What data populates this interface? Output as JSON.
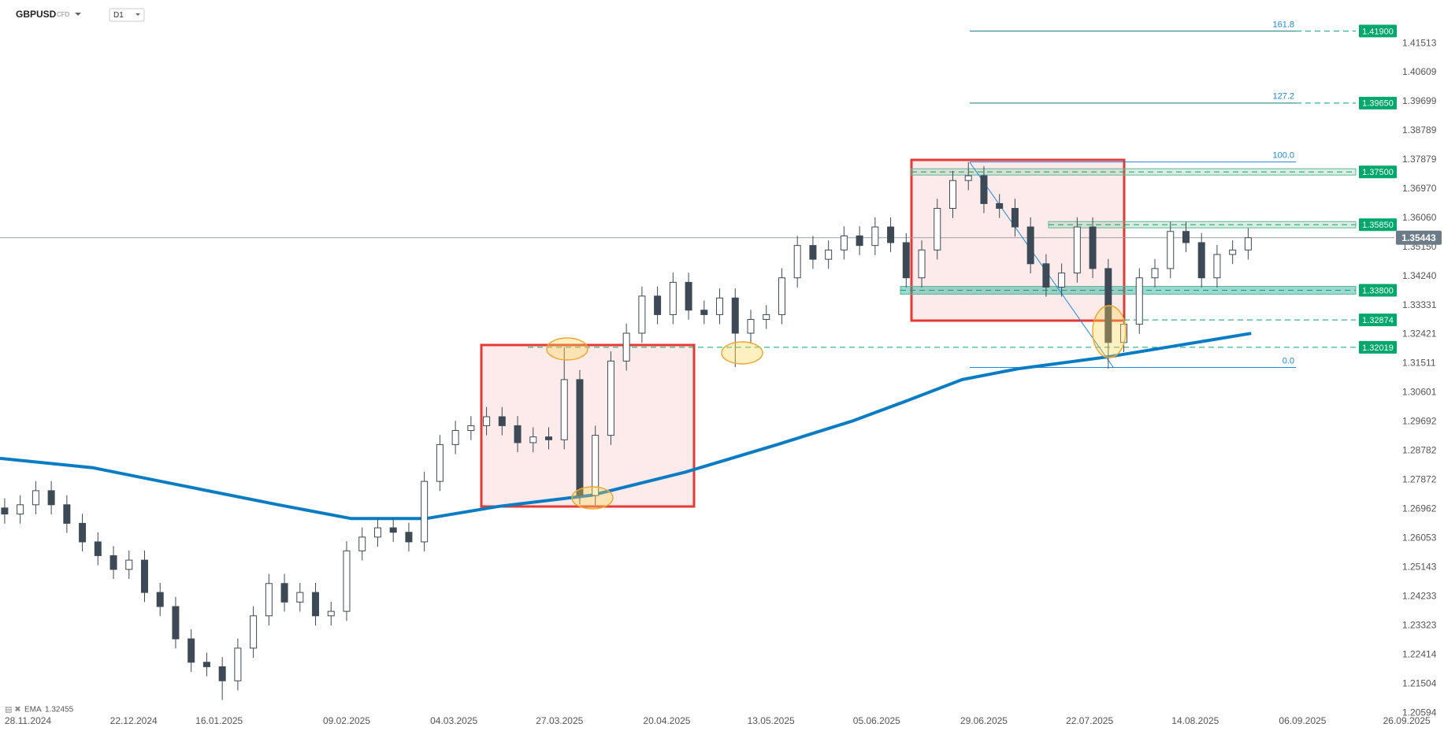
{
  "chart_data": {
    "type": "candlestick",
    "title": "GBPUSD",
    "subtitle": "CFD",
    "timeframe": "D1",
    "xlim": [
      -0.3,
      92.6
    ],
    "ylim": [
      1.2045,
      1.4287
    ],
    "xticks": [
      {
        "value": 1.5,
        "label": "28.11.2024"
      },
      {
        "value": 8.3,
        "label": "22.12.2024"
      },
      {
        "value": 13.8,
        "label": "16.01.2025"
      },
      {
        "value": 22,
        "label": "09.02.2025"
      },
      {
        "value": 28.9,
        "label": "04.03.2025"
      },
      {
        "value": 35.7,
        "label": "27.03.2025"
      },
      {
        "value": 42.6,
        "label": "20.04.2025"
      },
      {
        "value": 49.3,
        "label": "13.05.2025"
      },
      {
        "value": 56.1,
        "label": "05.06.2025"
      },
      {
        "value": 63,
        "label": "29.06.2025"
      },
      {
        "value": 69.8,
        "label": "22.07.2025"
      },
      {
        "value": 76.6,
        "label": "14.08.2025"
      },
      {
        "value": 83.5,
        "label": "06.09.2025"
      },
      {
        "value": 90.2,
        "label": "26.09.2025"
      }
    ],
    "yticks": [
      1.41513,
      1.40609,
      1.39699,
      1.38789,
      1.37879,
      {
        "value": 1.3697,
        "label": "1.36970"
      },
      {
        "value": 1.3606,
        "label": "1.36060"
      },
      {
        "value": 1.3515,
        "label": "1.35150"
      },
      {
        "value": 1.3424,
        "label": "1.34240"
      },
      1.33331,
      1.32421,
      1.31511,
      1.30601,
      1.29692,
      1.28782,
      1.27872,
      1.26962,
      1.26053,
      1.25143,
      1.24233,
      1.23323,
      1.22414,
      1.21504,
      1.20594
    ],
    "up_color": "#ffffff",
    "down_color": "#3d4a56",
    "candles": [
      [
        1.27,
        1.273,
        1.2651,
        1.2681
      ],
      [
        1.2681,
        1.274,
        1.2651,
        1.271
      ],
      [
        1.271,
        1.2784,
        1.268,
        1.2754
      ],
      [
        1.2754,
        1.2784,
        1.268,
        1.271
      ],
      [
        1.271,
        1.274,
        1.2622,
        1.2652
      ],
      [
        1.2652,
        1.2682,
        1.2564,
        1.2594
      ],
      [
        1.2594,
        1.2624,
        1.2521,
        1.2551
      ],
      [
        1.2551,
        1.2581,
        1.2478,
        1.2508
      ],
      [
        1.2508,
        1.2567,
        1.2478,
        1.2537
      ],
      [
        1.2537,
        1.2567,
        1.2406,
        1.2436
      ],
      [
        1.2436,
        1.2466,
        1.2362,
        1.2392
      ],
      [
        1.2392,
        1.2422,
        1.2261,
        1.2291
      ],
      [
        1.2291,
        1.2321,
        1.2188,
        1.2218
      ],
      [
        1.2218,
        1.2248,
        1.2174,
        1.2204
      ],
      [
        1.2204,
        1.2234,
        1.21,
        1.216
      ],
      [
        1.216,
        1.2292,
        1.213,
        1.2262
      ],
      [
        1.2262,
        1.2393,
        1.2232,
        1.2363
      ],
      [
        1.2363,
        1.2494,
        1.2333,
        1.2464
      ],
      [
        1.2464,
        1.2494,
        1.2376,
        1.2406
      ],
      [
        1.2406,
        1.2466,
        1.2376,
        1.2436
      ],
      [
        1.2436,
        1.2466,
        1.2333,
        1.2363
      ],
      [
        1.2363,
        1.2407,
        1.2333,
        1.2377
      ],
      [
        1.2377,
        1.2596,
        1.2347,
        1.2566
      ],
      [
        1.2566,
        1.2639,
        1.2536,
        1.2609
      ],
      [
        1.2609,
        1.2668,
        1.2579,
        1.2638
      ],
      [
        1.2638,
        1.2668,
        1.2594,
        1.2624
      ],
      [
        1.2624,
        1.2654,
        1.2564,
        1.2594
      ],
      [
        1.2594,
        1.2813,
        1.2564,
        1.2783
      ],
      [
        1.2783,
        1.2928,
        1.2753,
        1.2898
      ],
      [
        1.2898,
        1.2972,
        1.2868,
        1.2942
      ],
      [
        1.2942,
        1.2987,
        1.2912,
        1.2957
      ],
      [
        1.2957,
        1.3015,
        1.2927,
        1.2985
      ],
      [
        1.2985,
        1.3015,
        1.2927,
        1.2957
      ],
      [
        1.2957,
        1.2987,
        1.2874,
        1.2904
      ],
      [
        1.2904,
        1.2952,
        1.2874,
        1.2922
      ],
      [
        1.2922,
        1.2952,
        1.2883,
        1.2913
      ],
      [
        1.2913,
        1.3202,
        1.2883,
        1.3101
      ],
      [
        1.3101,
        1.3131,
        1.2711,
        1.2739
      ],
      [
        1.2739,
        1.2957,
        1.2709,
        1.2927
      ],
      [
        1.2927,
        1.3189,
        1.2897,
        1.3159
      ],
      [
        1.3159,
        1.3276,
        1.3129,
        1.3246
      ],
      [
        1.3246,
        1.3392,
        1.3216,
        1.3362
      ],
      [
        1.3362,
        1.3392,
        1.3274,
        1.3304
      ],
      [
        1.3304,
        1.3435,
        1.3274,
        1.3405
      ],
      [
        1.3405,
        1.3435,
        1.3288,
        1.3318
      ],
      [
        1.3318,
        1.3348,
        1.3274,
        1.3304
      ],
      [
        1.3304,
        1.3386,
        1.3274,
        1.3356
      ],
      [
        1.3356,
        1.3386,
        1.314,
        1.3246
      ],
      [
        1.3246,
        1.3319,
        1.3216,
        1.3289
      ],
      [
        1.3289,
        1.3334,
        1.3259,
        1.3304
      ],
      [
        1.3304,
        1.3449,
        1.3274,
        1.3419
      ],
      [
        1.3419,
        1.355,
        1.3389,
        1.352
      ],
      [
        1.352,
        1.355,
        1.3447,
        1.3477
      ],
      [
        1.3477,
        1.3536,
        1.3447,
        1.3506
      ],
      [
        1.3506,
        1.358,
        1.3476,
        1.355
      ],
      [
        1.355,
        1.358,
        1.349,
        1.352
      ],
      [
        1.352,
        1.3608,
        1.349,
        1.3578
      ],
      [
        1.3578,
        1.3608,
        1.3499,
        1.3529
      ],
      [
        1.3529,
        1.3559,
        1.3389,
        1.3419
      ],
      [
        1.3419,
        1.3536,
        1.3389,
        1.3506
      ],
      [
        1.3506,
        1.3666,
        1.3476,
        1.3636
      ],
      [
        1.3636,
        1.3753,
        1.3606,
        1.3723
      ],
      [
        1.3723,
        1.3781,
        1.3693,
        1.3738
      ],
      [
        1.3738,
        1.3768,
        1.3621,
        1.3651
      ],
      [
        1.3651,
        1.3681,
        1.3606,
        1.3636
      ],
      [
        1.3636,
        1.3666,
        1.3548,
        1.3578
      ],
      [
        1.3578,
        1.3608,
        1.3433,
        1.3463
      ],
      [
        1.3463,
        1.3493,
        1.336,
        1.339
      ],
      [
        1.339,
        1.3464,
        1.336,
        1.3434
      ],
      [
        1.3434,
        1.3608,
        1.3404,
        1.3578
      ],
      [
        1.3578,
        1.3608,
        1.3418,
        1.3448
      ],
      [
        1.3448,
        1.3478,
        1.3135,
        1.3217
      ],
      [
        1.3217,
        1.3304,
        1.3187,
        1.3274
      ],
      [
        1.3274,
        1.3449,
        1.3244,
        1.3419
      ],
      [
        1.3419,
        1.3478,
        1.3389,
        1.3448
      ],
      [
        1.3448,
        1.3594,
        1.3418,
        1.3564
      ],
      [
        1.3564,
        1.3594,
        1.3499,
        1.3529
      ],
      [
        1.3529,
        1.3559,
        1.3389,
        1.3419
      ],
      [
        1.3419,
        1.3522,
        1.3389,
        1.3492
      ],
      [
        1.3492,
        1.3536,
        1.3462,
        1.3506
      ],
      [
        1.3506,
        1.3574,
        1.3476,
        1.35443
      ]
    ],
    "ema": {
      "name": "EMA",
      "value": 1.32455,
      "color": "#0a7cc4",
      "x": [
        -0.3,
        5.65,
        11.6,
        17.6,
        22.3,
        27.1,
        31.8,
        37.8,
        43.8,
        49.7,
        54.5,
        58.0,
        61.6,
        65.2,
        71.1,
        75.9,
        80.2
      ],
      "values": [
        1.2855,
        1.2826,
        1.2768,
        1.271,
        1.2667,
        1.2667,
        1.2705,
        1.274,
        1.2812,
        1.2898,
        1.2971,
        1.3034,
        1.3101,
        1.3135,
        1.3173,
        1.3211,
        1.32455
      ]
    },
    "last_price": 1.35443,
    "levels": [
      {
        "value": 1.419,
        "label": "1.41900"
      },
      {
        "value": 1.3965,
        "label": "1.39650"
      },
      {
        "value": 1.375,
        "label": "1.37500"
      },
      {
        "value": 1.3585,
        "label": "1.35850"
      },
      {
        "value": 1.338,
        "label": "1.33800"
      },
      1.32874,
      1.32019
    ],
    "level_color": "#00a86b",
    "fib": [
      {
        "label": "161.8",
        "price": 1.419
      },
      {
        "label": "127.2",
        "price": 1.3965
      },
      {
        "label": "100.0",
        "price": 1.3781
      },
      {
        "label": "0.0",
        "price": 1.3139
      }
    ]
  }
}
